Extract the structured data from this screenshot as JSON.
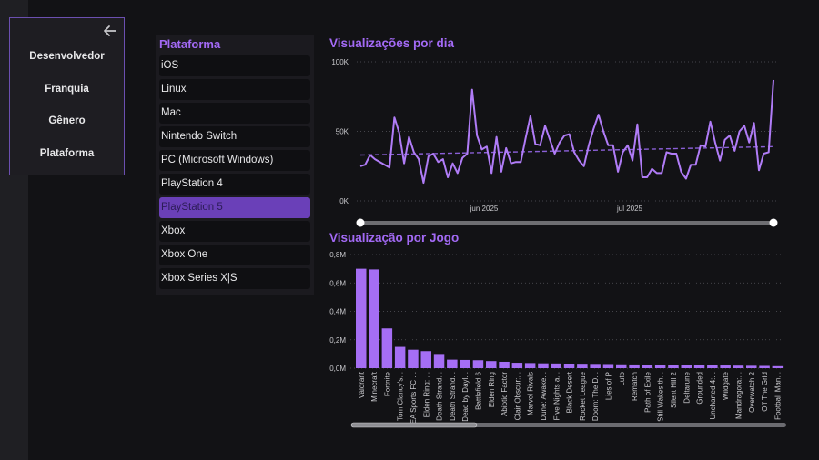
{
  "nav": {
    "back_icon": "arrow-left-icon",
    "buttons": [
      "Desenvolvedor",
      "Franquia",
      "Gênero",
      "Plataforma"
    ]
  },
  "slicer": {
    "title": "Plataforma",
    "items": [
      "iOS",
      "Linux",
      "Mac",
      "Nintendo Switch",
      "PC (Microsoft Windows)",
      "PlayStation 4",
      "PlayStation 5",
      "Xbox",
      "Xbox One",
      "Xbox Series X|S"
    ],
    "selected": "PlayStation 5"
  },
  "colors": {
    "accent": "#a36af5",
    "line": "#b07cf7",
    "bar": "#a56ef4",
    "selected": "#6a40b8"
  },
  "chart_data": [
    {
      "type": "line",
      "title": "Visualizações por dia",
      "xlabel": "",
      "ylabel": "",
      "ylim": [
        0,
        100000
      ],
      "yticks": [
        0,
        50000,
        100000
      ],
      "ytick_labels": [
        "0K",
        "50K",
        "100K"
      ],
      "xtick_labels": [
        "jun 2025",
        "jul 2025"
      ],
      "grid": true,
      "trend_line": true,
      "trend": {
        "start": 33000,
        "end": 39000
      },
      "series": [
        {
          "name": "Visualizações",
          "values": [
            25000,
            26000,
            33000,
            30000,
            28000,
            26000,
            24000,
            60000,
            49000,
            27000,
            46000,
            35000,
            30000,
            13000,
            32000,
            34000,
            28000,
            30000,
            17000,
            27000,
            20000,
            31000,
            34000,
            80000,
            47000,
            37000,
            39000,
            20000,
            46000,
            21000,
            38000,
            27000,
            28000,
            28000,
            45000,
            61000,
            41000,
            40000,
            54000,
            44000,
            34000,
            42000,
            47000,
            48000,
            35000,
            29000,
            25000,
            40000,
            52000,
            62000,
            50000,
            40000,
            40000,
            21000,
            35000,
            40000,
            29000,
            55000,
            17000,
            17000,
            23000,
            20000,
            20000,
            35000,
            34000,
            34000,
            21000,
            16000,
            26000,
            26000,
            40000,
            39000,
            57000,
            42000,
            29000,
            44000,
            47000,
            36000,
            50000,
            54000,
            42000,
            56000,
            22000,
            34000,
            35000,
            87000
          ]
        }
      ]
    },
    {
      "type": "bar",
      "title": "Visualização por Jogo",
      "xlabel": "",
      "ylabel": "",
      "ylim": [
        0,
        800000
      ],
      "yticks": [
        0,
        200000,
        400000,
        600000,
        800000
      ],
      "ytick_labels": [
        "0,0M",
        "0,2M",
        "0,4M",
        "0,6M",
        "0,8M"
      ],
      "grid": true,
      "categories": [
        "Valorant",
        "Minecraft",
        "Fortnite",
        "Tom Clancy's...",
        "EA Sports FC ...",
        "Elden Ring: ...",
        "Death Strand...",
        "Death Strand...",
        "Dead by Dayl...",
        "Battlefield 6",
        "Elden Ring",
        "Abiotic Factor",
        "Clair Obscur:...",
        "Marvel Rivals",
        "Dune: Awake...",
        "Five Nights a...",
        "Black Desert",
        "Rocket League",
        "Doom: The D...",
        "Lies of P",
        "Luto",
        "Rematch",
        "Path of Exile",
        "Still Wakes th...",
        "Silent Hill 2",
        "Deltarune",
        "Grounded",
        "Uncharted 4:...",
        "Wildgate",
        "Mandragora:...",
        "Overwatch 2",
        "Off The Grid",
        "Football Man..."
      ],
      "values": [
        700000,
        695000,
        280000,
        150000,
        130000,
        120000,
        100000,
        60000,
        58000,
        56000,
        50000,
        45000,
        38000,
        36000,
        34000,
        33000,
        32000,
        31000,
        30000,
        29000,
        27000,
        26000,
        25000,
        24000,
        23000,
        22000,
        21000,
        20000,
        19000,
        18000,
        17000,
        16000,
        14000
      ]
    }
  ]
}
